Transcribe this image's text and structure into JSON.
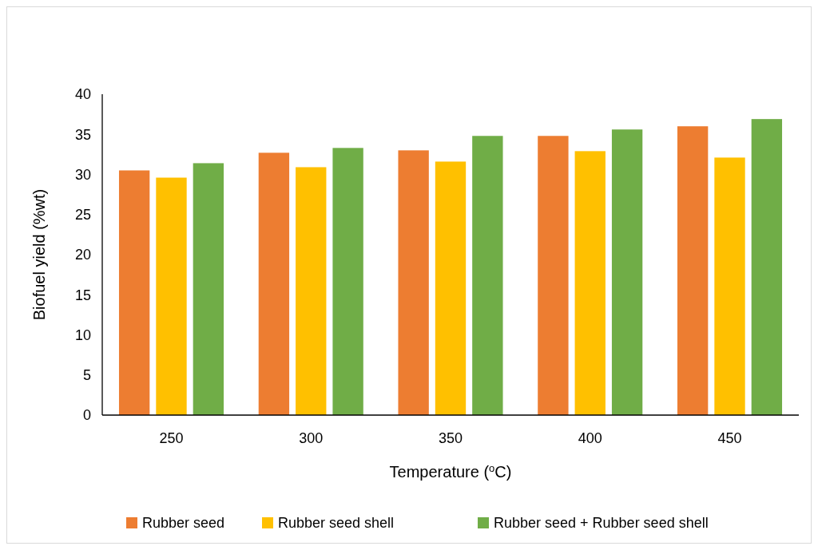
{
  "chart_data": {
    "type": "bar",
    "xlabel": "Temperature ($^{o}$C)",
    "ylabel": "Biofuel yield (%wt)",
    "categories": [
      "250",
      "300",
      "350",
      "400",
      "450"
    ],
    "series": [
      {
        "name": "Rubber seed",
        "color": "#ed7d31",
        "values": [
          30.5,
          32.7,
          33.0,
          34.8,
          36.0
        ]
      },
      {
        "name": "Rubber seed shell",
        "color": "#ffc000",
        "values": [
          29.6,
          30.9,
          31.6,
          32.9,
          32.1
        ]
      },
      {
        "name": "Rubber seed + Rubber seed shell",
        "color": "#70ad47",
        "values": [
          31.4,
          33.3,
          34.8,
          35.6,
          36.9
        ]
      }
    ],
    "ylim": [
      0,
      40
    ],
    "yticks": [
      0,
      5,
      10,
      15,
      20,
      25,
      30,
      35,
      40
    ],
    "grid": false,
    "legend": "bottom"
  }
}
